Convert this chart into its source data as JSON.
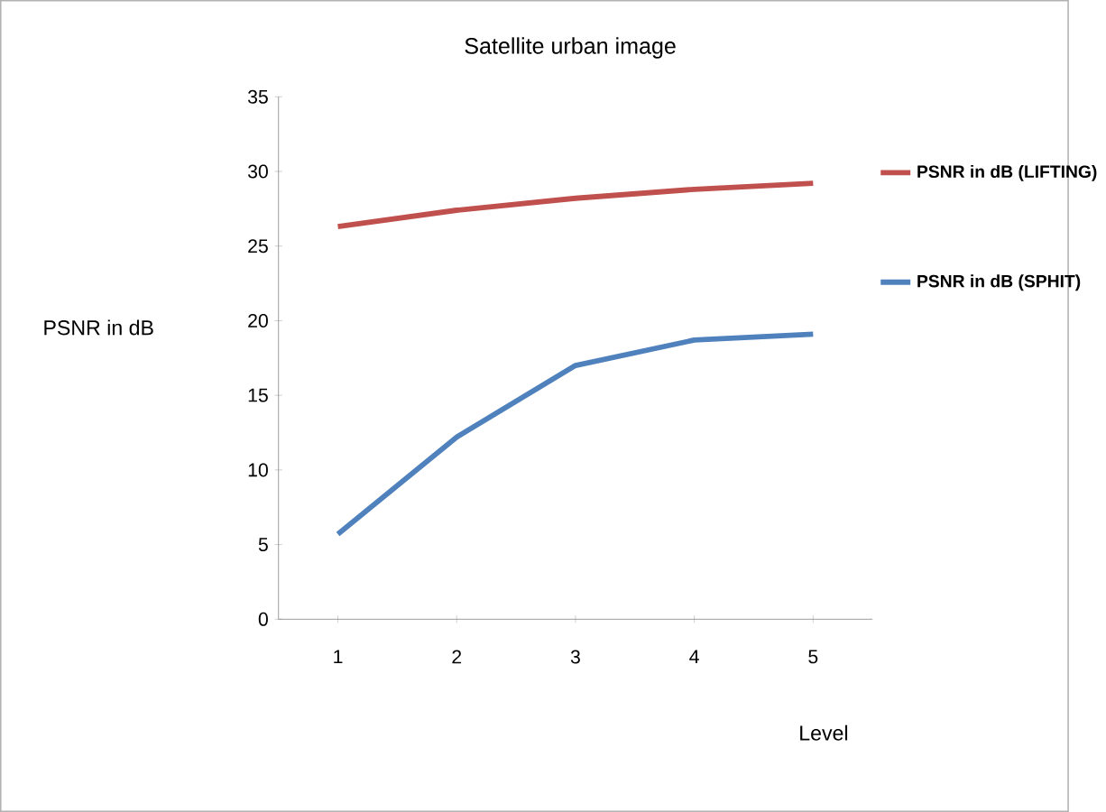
{
  "chart_data": {
    "type": "line",
    "title": "Satellite urban image",
    "xlabel": "Level",
    "ylabel": "PSNR in dB",
    "categories": [
      "1",
      "2",
      "3",
      "4",
      "5"
    ],
    "series": [
      {
        "name": "PSNR in dB   (LIFTING)",
        "color": "#c0504d",
        "values": [
          26.3,
          27.4,
          28.2,
          28.8,
          29.2
        ]
      },
      {
        "name": "PSNR in dB   (SPHIT)",
        "color": "#4f81bd",
        "values": [
          5.7,
          12.2,
          17.0,
          18.7,
          19.1
        ]
      }
    ],
    "ylim": [
      0,
      35
    ],
    "yticks": [
      0,
      5,
      10,
      15,
      20,
      25,
      30,
      35
    ],
    "legend": "right",
    "grid": false,
    "marker": "none",
    "line_style": "solid"
  }
}
